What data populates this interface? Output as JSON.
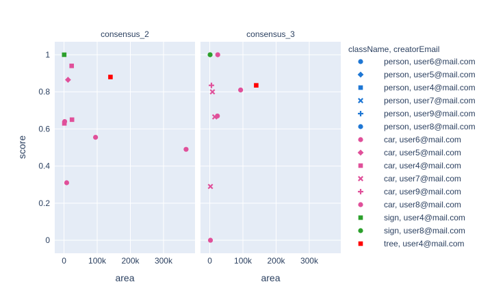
{
  "chart_data": {
    "type": "scatter",
    "facets": [
      "consensus_2",
      "consensus_3"
    ],
    "xlabel": "area",
    "ylabel": "score",
    "xlim": [
      -28000,
      395000
    ],
    "ylim": [
      -0.07,
      1.07
    ],
    "xticks": [
      {
        "v": 0,
        "label": "0"
      },
      {
        "v": 100000,
        "label": "100k"
      },
      {
        "v": 200000,
        "label": "200k"
      },
      {
        "v": 300000,
        "label": "300k"
      }
    ],
    "yticks": [
      {
        "v": 0,
        "label": "0"
      },
      {
        "v": 0.2,
        "label": "0.2"
      },
      {
        "v": 0.4,
        "label": "0.4"
      },
      {
        "v": 0.6,
        "label": "0.6"
      },
      {
        "v": 0.8,
        "label": "0.8"
      },
      {
        "v": 1,
        "label": "1"
      }
    ],
    "legend_title": "className, creatorEmail",
    "legend_position": "right",
    "grid": true,
    "series": [
      {
        "name": "person, user6@mail.com",
        "color": "#1f77d4",
        "symbol": "circle",
        "points": []
      },
      {
        "name": "person, user5@mail.com",
        "color": "#1f77d4",
        "symbol": "diamond",
        "points": []
      },
      {
        "name": "person, user4@mail.com",
        "color": "#1f77d4",
        "symbol": "square",
        "points": []
      },
      {
        "name": "person, user7@mail.com",
        "color": "#1f77d4",
        "symbol": "x",
        "points": []
      },
      {
        "name": "person, user9@mail.com",
        "color": "#1f77d4",
        "symbol": "cross",
        "points": []
      },
      {
        "name": "person, user8@mail.com",
        "color": "#1f77d4",
        "symbol": "circle",
        "points": []
      },
      {
        "name": "car, user6@mail.com",
        "color": "#e0509a",
        "symbol": "circle",
        "points": [
          {
            "facet": 0,
            "x": 2000,
            "y": 0.64
          },
          {
            "facet": 0,
            "x": 8000,
            "y": 0.31
          },
          {
            "facet": 0,
            "x": 95000,
            "y": 0.555
          },
          {
            "facet": 0,
            "x": 368000,
            "y": 0.49
          },
          {
            "facet": 1,
            "x": 24000,
            "y": 1.0
          },
          {
            "facet": 1,
            "x": 23000,
            "y": 0.67
          },
          {
            "facet": 1,
            "x": 93000,
            "y": 0.81
          },
          {
            "facet": 1,
            "x": 2000,
            "y": 0.0
          }
        ]
      },
      {
        "name": "car, user5@mail.com",
        "color": "#e0509a",
        "symbol": "diamond",
        "points": [
          {
            "facet": 0,
            "x": 12000,
            "y": 0.865
          }
        ]
      },
      {
        "name": "car, user4@mail.com",
        "color": "#e0509a",
        "symbol": "square",
        "points": [
          {
            "facet": 0,
            "x": 23000,
            "y": 0.94
          },
          {
            "facet": 0,
            "x": 24000,
            "y": 0.65
          },
          {
            "facet": 0,
            "x": 1000,
            "y": 0.63
          }
        ]
      },
      {
        "name": "car, user7@mail.com",
        "color": "#e0509a",
        "symbol": "x",
        "points": [
          {
            "facet": 1,
            "x": 8000,
            "y": 0.8
          },
          {
            "facet": 1,
            "x": 15000,
            "y": 0.665
          },
          {
            "facet": 1,
            "x": 2000,
            "y": 0.29
          }
        ]
      },
      {
        "name": "car, user9@mail.com",
        "color": "#e0509a",
        "symbol": "cross",
        "points": [
          {
            "facet": 1,
            "x": 5000,
            "y": 0.835
          }
        ]
      },
      {
        "name": "car, user8@mail.com",
        "color": "#e0509a",
        "symbol": "circle",
        "points": []
      },
      {
        "name": "sign, user4@mail.com",
        "color": "#2ca02c",
        "symbol": "square",
        "points": [
          {
            "facet": 0,
            "x": 500,
            "y": 1.0
          }
        ]
      },
      {
        "name": "sign, user8@mail.com",
        "color": "#2ca02c",
        "symbol": "circle",
        "points": [
          {
            "facet": 1,
            "x": 1000,
            "y": 1.0
          }
        ]
      },
      {
        "name": "tree, user4@mail.com",
        "color": "#ff0000",
        "symbol": "square",
        "points": [
          {
            "facet": 0,
            "x": 140000,
            "y": 0.88
          },
          {
            "facet": 1,
            "x": 140000,
            "y": 0.835
          }
        ]
      }
    ]
  }
}
